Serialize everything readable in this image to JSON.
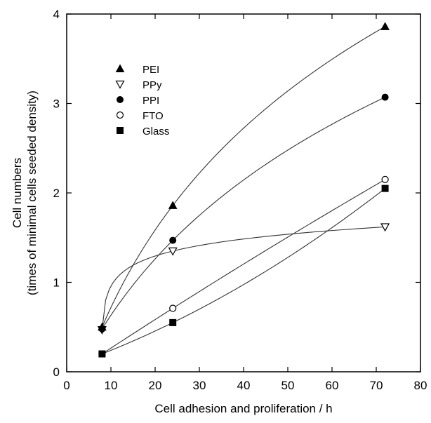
{
  "chart_data": {
    "type": "scatter",
    "xlabel": "Cell adhesion and proliferation  / h",
    "ylabel_line1": "Cell numbers",
    "ylabel_line2": "(times of minimal cells seeded density)",
    "xlim": [
      0,
      80
    ],
    "ylim": [
      0,
      4
    ],
    "xticks": [
      0,
      10,
      20,
      30,
      40,
      50,
      60,
      70,
      80
    ],
    "yticks": [
      0,
      1,
      2,
      3,
      4
    ],
    "grid": false,
    "legend_position": "top-left",
    "series": [
      {
        "name": "PEI",
        "marker": "triangle-up-filled",
        "x": [
          8,
          24,
          72
        ],
        "y": [
          0.5,
          1.86,
          3.86
        ]
      },
      {
        "name": "PPy",
        "marker": "triangle-down-open",
        "x": [
          8,
          24,
          72
        ],
        "y": [
          0.47,
          1.35,
          1.62
        ]
      },
      {
        "name": "PPI",
        "marker": "circle-filled",
        "x": [
          8,
          24,
          72
        ],
        "y": [
          0.48,
          1.47,
          3.07
        ]
      },
      {
        "name": "FTO",
        "marker": "circle-open",
        "x": [
          8,
          24,
          72
        ],
        "y": [
          0.2,
          0.71,
          2.15
        ]
      },
      {
        "name": "Glass",
        "marker": "square-filled",
        "x": [
          8,
          24,
          72
        ],
        "y": [
          0.2,
          0.55,
          2.05
        ]
      }
    ]
  }
}
